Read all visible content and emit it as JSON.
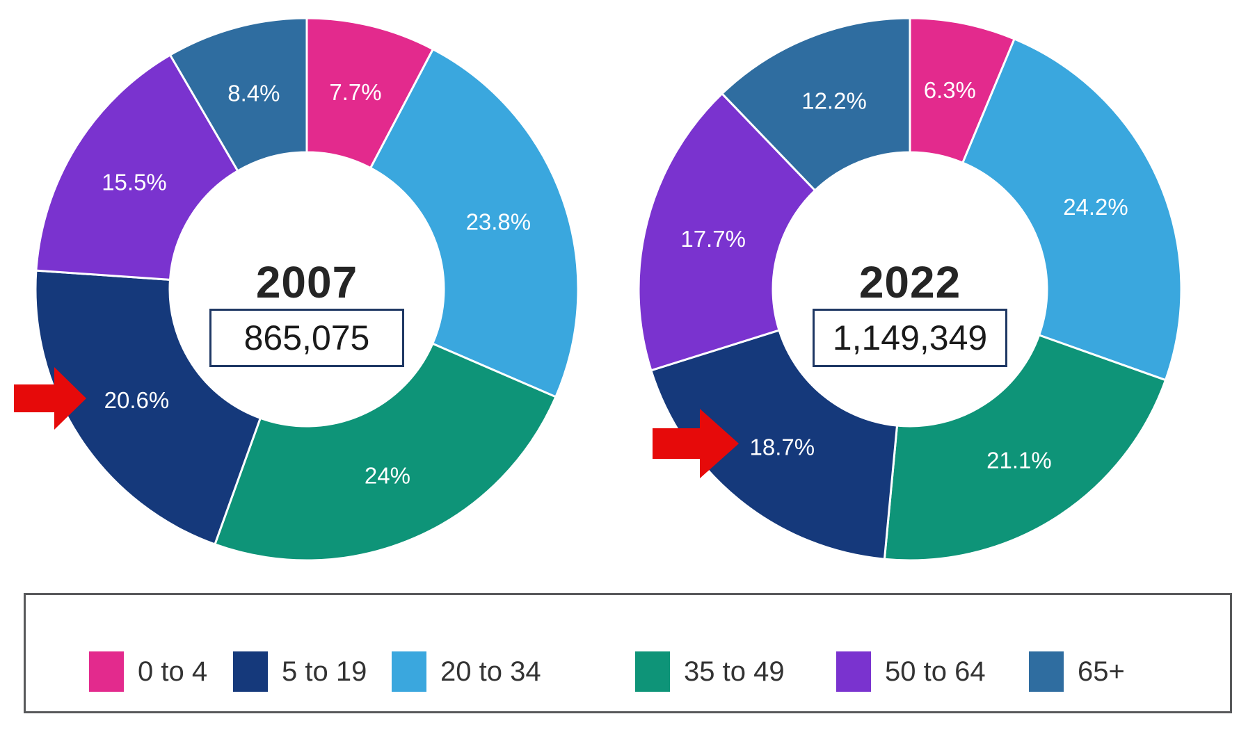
{
  "colors": {
    "0 to 4": "#E32A8D",
    "5 to 19": "#15397B",
    "20 to 34": "#3AA7DE",
    "35 to 49": "#0E9478",
    "50 to 64": "#7A33CF",
    "65+": "#2F6DA0",
    "arrow_red": "#E60A0A",
    "total_box_border": "#1F3864",
    "legend_border": "#58595B",
    "slice_label_text": "#FFFFFF",
    "title_text": "#252525"
  },
  "legend": {
    "items": [
      {
        "label": "0 to 4",
        "color": "#E32A8D"
      },
      {
        "label": "5 to 19",
        "color": "#15397B"
      },
      {
        "label": "20 to 34",
        "color": "#3AA7DE"
      },
      {
        "label": "35 to 49",
        "color": "#0E9478"
      },
      {
        "label": "50 to 64",
        "color": "#7A33CF"
      },
      {
        "label": "65+",
        "color": "#2F6DA0"
      }
    ]
  },
  "annotations": {
    "arrow_color": "#E60A0A",
    "arrows": [
      {
        "chart": "2007",
        "points_to_category": "5 to 19",
        "points_to_label": "20.6%"
      },
      {
        "chart": "2022",
        "points_to_category": "5 to 19",
        "points_to_label": "18.7%"
      }
    ]
  },
  "chart_data": [
    {
      "type": "pie",
      "subtype": "donut",
      "title": "2007",
      "center_label": "2007",
      "center_value": "865,075",
      "start_angle": "top",
      "direction": "clockwise",
      "slices": [
        {
          "category": "0 to 4",
          "value": 7.7,
          "label": "7.7%",
          "color": "#E32A8D"
        },
        {
          "category": "20 to 34",
          "value": 23.8,
          "label": "23.8%",
          "color": "#3AA7DE"
        },
        {
          "category": "35 to 49",
          "value": 24,
          "label": "24%",
          "color": "#0E9478"
        },
        {
          "category": "5 to 19",
          "value": 20.6,
          "label": "20.6%",
          "color": "#15397B"
        },
        {
          "category": "50 to 64",
          "value": 15.5,
          "label": "15.5%",
          "color": "#7A33CF"
        },
        {
          "category": "65+",
          "value": 8.4,
          "label": "8.4%",
          "color": "#2F6DA0"
        }
      ]
    },
    {
      "type": "pie",
      "subtype": "donut",
      "title": "2022",
      "center_label": "2022",
      "center_value": "1,149,349",
      "start_angle": "top",
      "direction": "clockwise",
      "slices": [
        {
          "category": "0 to 4",
          "value": 6.3,
          "label": "6.3%",
          "color": "#E32A8D"
        },
        {
          "category": "20 to 34",
          "value": 24.2,
          "label": "24.2%",
          "color": "#3AA7DE"
        },
        {
          "category": "35 to 49",
          "value": 21.1,
          "label": "21.1%",
          "color": "#0E9478"
        },
        {
          "category": "5 to 19",
          "value": 18.7,
          "label": "18.7%",
          "color": "#15397B"
        },
        {
          "category": "50 to 64",
          "value": 17.7,
          "label": "17.7%",
          "color": "#7A33CF"
        },
        {
          "category": "65+",
          "value": 12.2,
          "label": "12.2%",
          "color": "#2F6DA0"
        }
      ]
    }
  ]
}
